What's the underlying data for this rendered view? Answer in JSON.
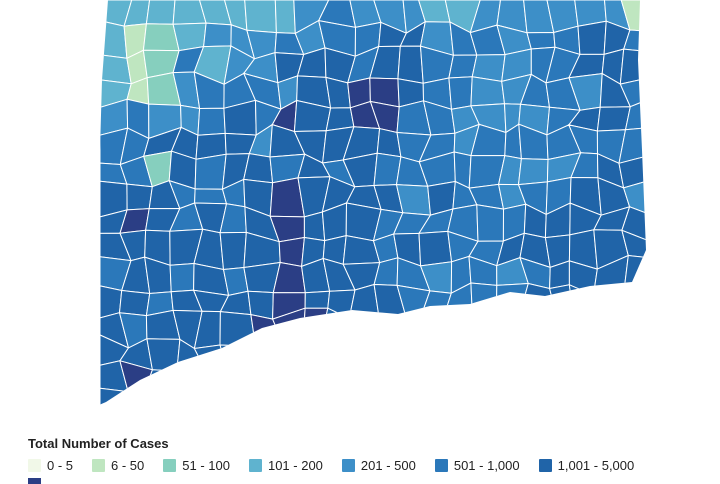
{
  "legend": {
    "title": "Total Number of Cases",
    "items": [
      {
        "label": "0 - 5",
        "color": "#f1f8e8"
      },
      {
        "label": "6 - 50",
        "color": "#bfe6c0"
      },
      {
        "label": "51 - 100",
        "color": "#86cfbe"
      },
      {
        "label": "101 - 200",
        "color": "#5fb3cf"
      },
      {
        "label": "201 - 500",
        "color": "#3d8fc8"
      },
      {
        "label": "501 - 1,000",
        "color": "#2b78ba"
      },
      {
        "label": "1,001 - 5,000",
        "color": "#2064a8"
      },
      {
        "label": "",
        "color": "#2b3e85"
      }
    ]
  },
  "map": {
    "type": "choropleth",
    "outline_color": "#ffffff"
  }
}
